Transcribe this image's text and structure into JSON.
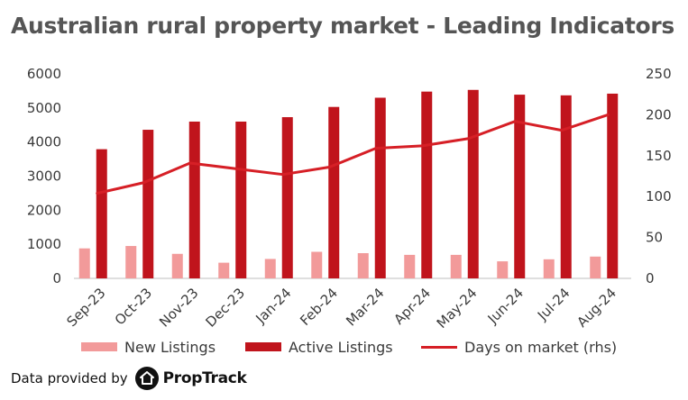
{
  "title": "Australian rural property market - Leading Indicators",
  "colors": {
    "new_listings": "#f29a9a",
    "active_listings": "#c0141c",
    "days_on_market": "#d61f26",
    "text": "#3a3a3a",
    "title": "#555555"
  },
  "chart_data": {
    "type": "bar",
    "categories": [
      "Sep-23",
      "Oct-23",
      "Nov-23",
      "Dec-23",
      "Jan-24",
      "Feb-24",
      "Mar-24",
      "Apr-24",
      "May-24",
      "Jun-24",
      "Jul-24",
      "Aug-24"
    ],
    "series": [
      {
        "name": "New Listings",
        "type": "bar",
        "axis": "left",
        "values": [
          880,
          950,
          720,
          460,
          570,
          780,
          740,
          690,
          690,
          500,
          560,
          640
        ]
      },
      {
        "name": "Active Listings",
        "type": "bar",
        "axis": "left",
        "values": [
          3790,
          4360,
          4600,
          4600,
          4730,
          5030,
          5300,
          5480,
          5530,
          5390,
          5370,
          5420
        ]
      },
      {
        "name": "Days on market  (rhs)",
        "type": "line",
        "axis": "right",
        "values": [
          104,
          117,
          141,
          134,
          127,
          136,
          159,
          162,
          171,
          192,
          181,
          200
        ]
      }
    ],
    "y_left": {
      "min": 0,
      "max": 6000,
      "ticks": [
        0,
        1000,
        2000,
        3000,
        4000,
        5000,
        6000
      ]
    },
    "y_right": {
      "min": 0,
      "max": 250,
      "ticks": [
        0,
        50,
        100,
        150,
        200,
        250
      ]
    },
    "grid": false,
    "legend": "bottom"
  },
  "footer": {
    "provided_by": "Data provided by",
    "logo_text": "PropTrack"
  }
}
